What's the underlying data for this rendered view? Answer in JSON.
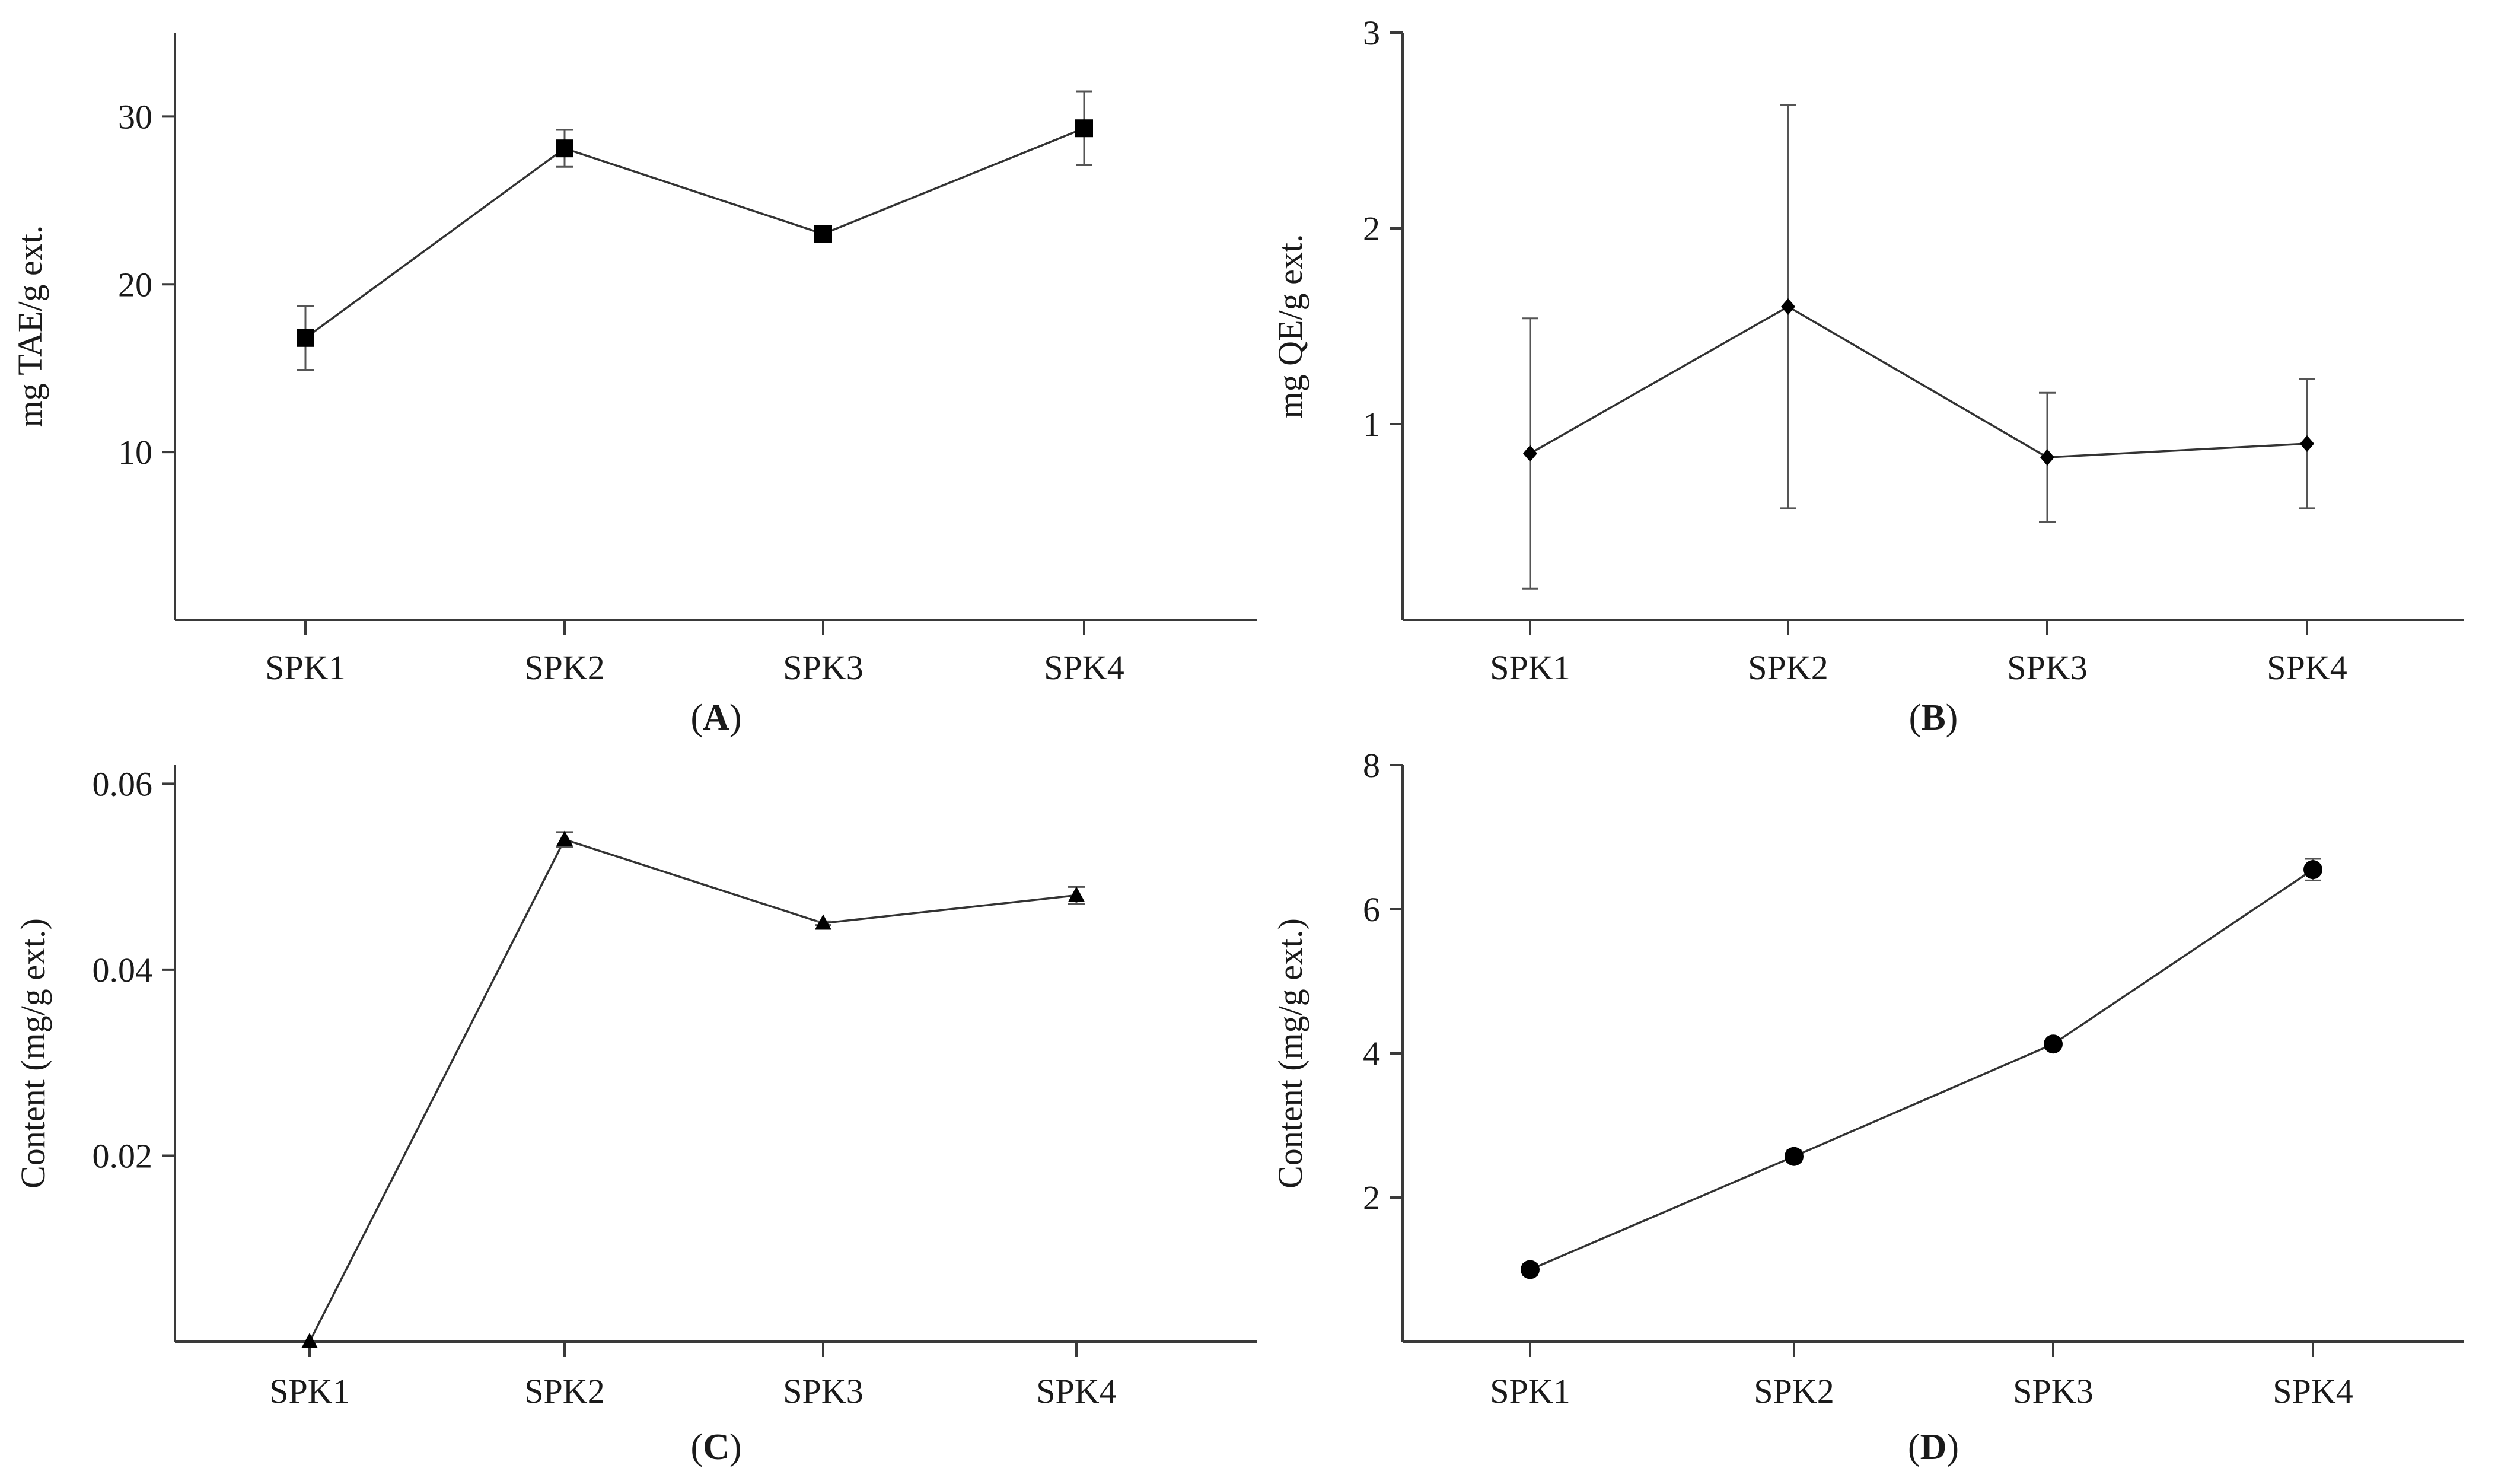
{
  "chart_data": [
    {
      "id": "A",
      "type": "line",
      "panel_label": "A",
      "ylabel": "mg TAE/g ext.",
      "xlabel": "",
      "categories": [
        "SPK1",
        "SPK2",
        "SPK3",
        "SPK4"
      ],
      "ylim": [
        0,
        35
      ],
      "yticks": [
        10,
        20,
        30
      ],
      "marker": "square",
      "series": [
        {
          "name": "mg TAE/g ext.",
          "values": [
            16.8,
            28.1,
            23.0,
            29.3
          ],
          "errors": [
            1.9,
            1.1,
            0.2,
            2.2
          ]
        }
      ]
    },
    {
      "id": "B",
      "type": "line",
      "panel_label": "B",
      "ylabel": "mg QE/g ext.",
      "xlabel": "",
      "categories": [
        "SPK1",
        "SPK2",
        "SPK3",
        "SPK4"
      ],
      "ylim": [
        0,
        3
      ],
      "yticks": [
        1,
        2,
        3
      ],
      "marker": "diamond",
      "series": [
        {
          "name": "mg QE/g ext.",
          "values": [
            0.85,
            1.6,
            0.83,
            0.9
          ],
          "errors": [
            0.69,
            1.03,
            0.33,
            0.33
          ]
        }
      ]
    },
    {
      "id": "C",
      "type": "line",
      "panel_label": "C",
      "ylabel": "Content (mg/g ext.)",
      "xlabel": "",
      "categories": [
        "SPK1",
        "SPK2",
        "SPK3",
        "SPK4"
      ],
      "ylim": [
        0,
        0.062
      ],
      "yticks": [
        0.02,
        0.04,
        0.06
      ],
      "marker": "triangle",
      "series": [
        {
          "name": "Content (mg/g ext.)",
          "values": [
            0.0,
            0.054,
            0.045,
            0.048
          ],
          "errors": [
            0.0,
            0.0008,
            0.0002,
            0.0009
          ]
        }
      ]
    },
    {
      "id": "D",
      "type": "line",
      "panel_label": "D",
      "ylabel": "Content (mg/g ext.)",
      "xlabel": "",
      "categories": [
        "SPK1",
        "SPK2",
        "SPK3",
        "SPK4"
      ],
      "ylim": [
        0,
        8
      ],
      "yticks": [
        2,
        4,
        6,
        8
      ],
      "marker": "circle",
      "series": [
        {
          "name": "Content (mg/g ext.)",
          "values": [
            1.0,
            2.57,
            4.13,
            6.55
          ],
          "errors": [
            0.08,
            0.08,
            0.05,
            0.15
          ]
        }
      ]
    }
  ]
}
